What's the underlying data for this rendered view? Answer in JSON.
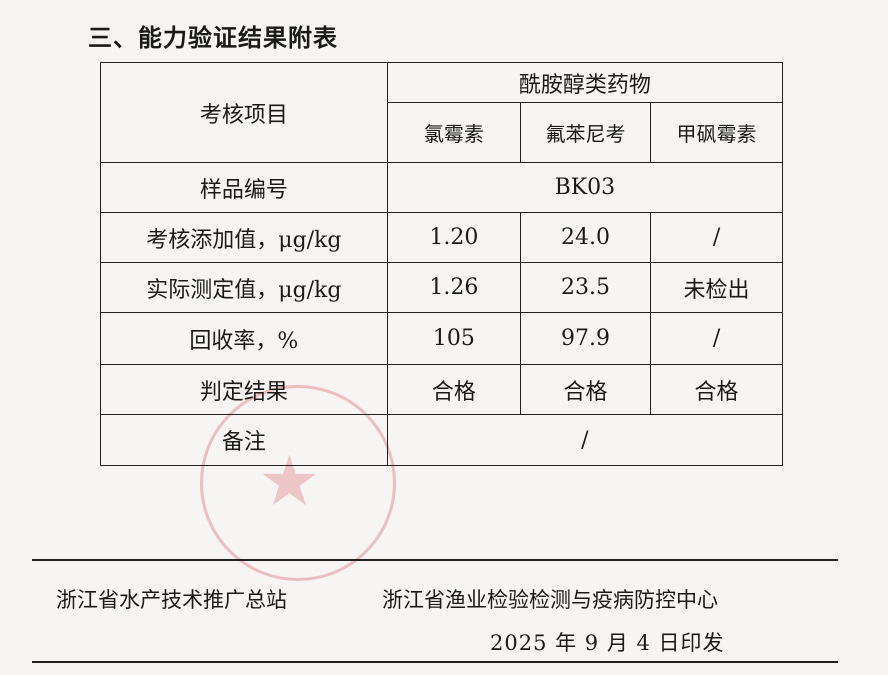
{
  "title": "三、能力验证结果附表",
  "table": {
    "item_header": "考核项目",
    "group_header": "酰胺醇类药物",
    "drugs": [
      "氯霉素",
      "氟苯尼考",
      "甲砜霉素"
    ],
    "sample_label": "样品编号",
    "sample_value": "BK03",
    "rows": [
      {
        "label": "考核添加值，μg/kg",
        "values": [
          "1.20",
          "24.0",
          "/"
        ]
      },
      {
        "label": "实际测定值，μg/kg",
        "values": [
          "1.26",
          "23.5",
          "未检出"
        ]
      },
      {
        "label": "回收率，%",
        "values": [
          "105",
          "97.9",
          "/"
        ]
      },
      {
        "label": "判定结果",
        "values": [
          "合格",
          "合格",
          "合格"
        ]
      }
    ],
    "remark_label": "备注",
    "remark_value": "/"
  },
  "footer": {
    "org1": "浙江省水产技术推广总站",
    "org2": "浙江省渔业检验检测与疫病防控中心",
    "date": "2025 年 9 月 4 日印发"
  },
  "colors": {
    "stamp": "#dc5a64"
  }
}
